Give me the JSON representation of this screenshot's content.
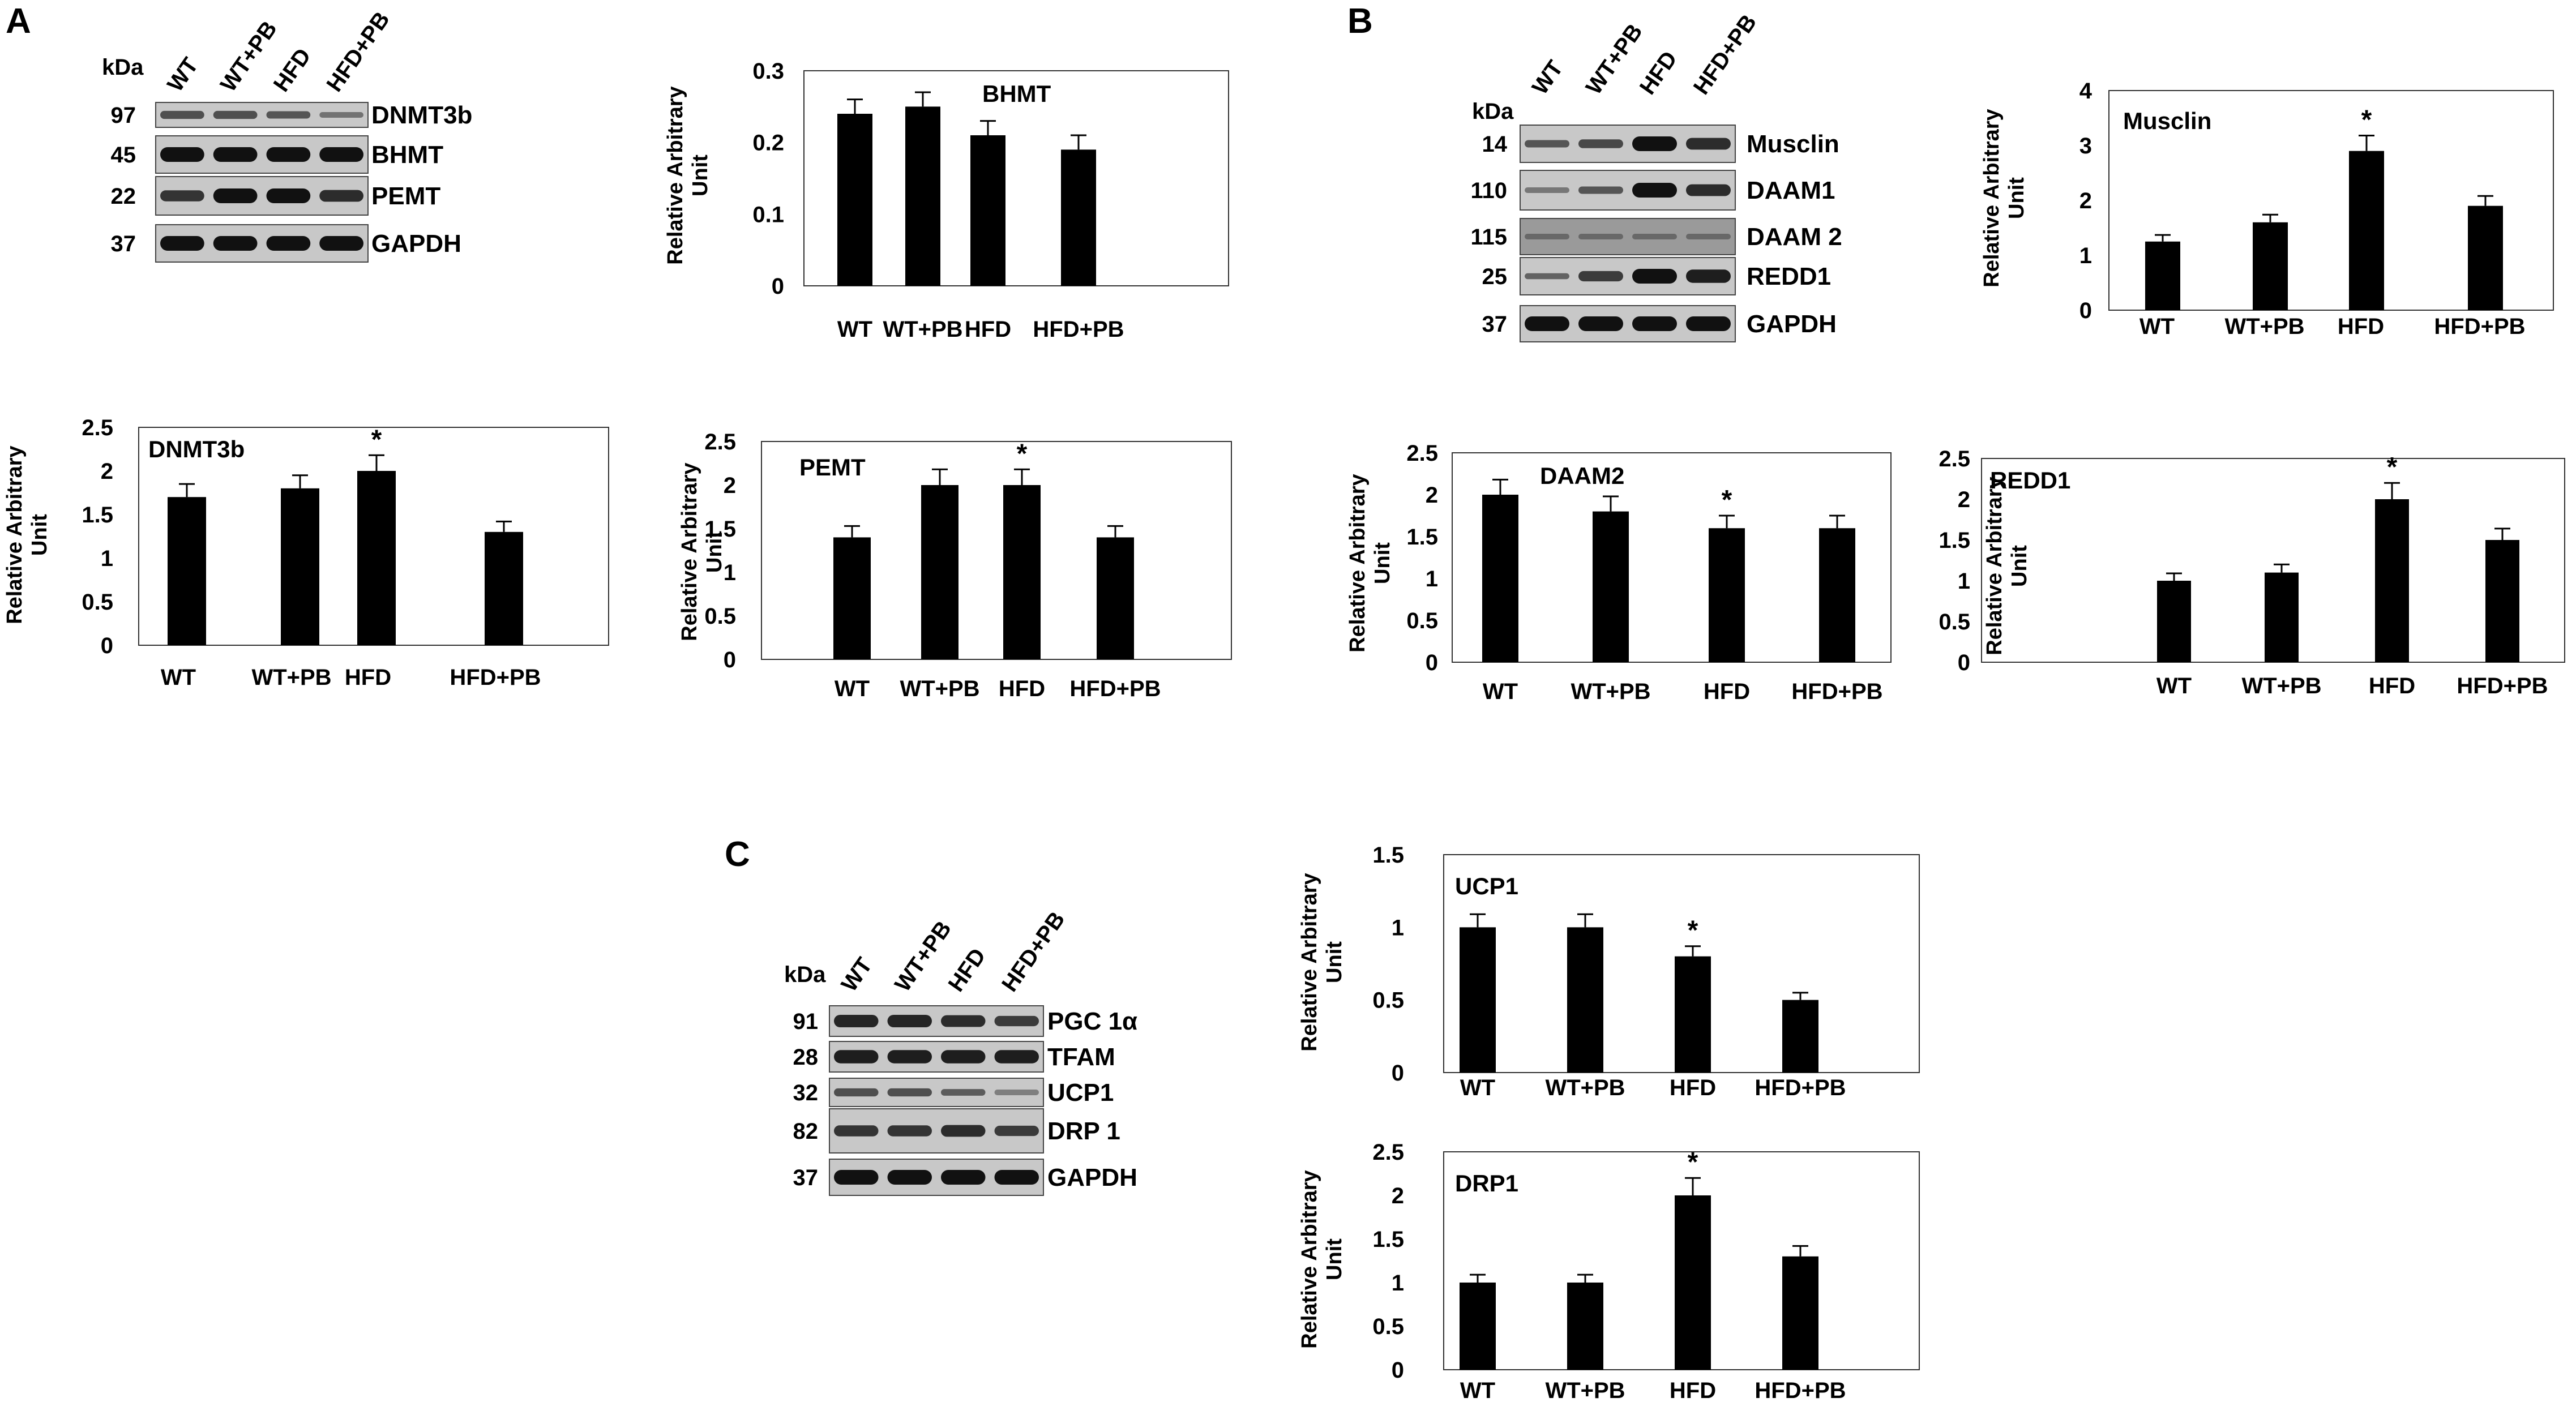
{
  "panels": [
    "A",
    "B",
    "C"
  ],
  "blots": [
    {
      "id": "A",
      "kda_title": "kDa",
      "lanes": [
        "WT",
        "WT+PB",
        "HFD",
        "HFD+PB"
      ],
      "rows": [
        {
          "kda": "97",
          "protein": "DNMT3b"
        },
        {
          "kda": "45",
          "protein": "BHMT"
        },
        {
          "kda": "22",
          "protein": "PEMT"
        },
        {
          "kda": "37",
          "protein": "GAPDH"
        }
      ]
    },
    {
      "id": "B",
      "kda_title": "kDa",
      "lanes": [
        "WT",
        "WT+PB",
        "HFD",
        "HFD+PB"
      ],
      "rows": [
        {
          "kda": "14",
          "protein": "Musclin"
        },
        {
          "kda": "110",
          "protein": "DAAM1"
        },
        {
          "kda": "115",
          "protein": "DAAM 2"
        },
        {
          "kda": "25",
          "protein": "REDD1"
        },
        {
          "kda": "37",
          "protein": "GAPDH"
        }
      ]
    },
    {
      "id": "C",
      "kda_title": "kDa",
      "lanes": [
        "WT",
        "WT+PB",
        "HFD",
        "HFD+PB"
      ],
      "rows": [
        {
          "kda": "91",
          "protein": "PGC 1α"
        },
        {
          "kda": "28",
          "protein": "TFAM"
        },
        {
          "kda": "32",
          "protein": "UCP1"
        },
        {
          "kda": "82",
          "protein": "DRP 1"
        },
        {
          "kda": "37",
          "protein": "GAPDH"
        }
      ]
    }
  ],
  "chart_data": [
    {
      "type": "bar",
      "title": "BHMT",
      "ylabel": "Relative Arbitrary Unit",
      "categories": [
        "WT",
        "WT+PB",
        "HFD",
        "HFD+PB"
      ],
      "values": [
        0.24,
        0.25,
        0.21,
        0.19
      ],
      "errors": [
        0.02,
        0.02,
        0.02,
        0.02
      ],
      "significant": [
        false,
        false,
        false,
        false
      ],
      "ylim": [
        0,
        0.3
      ],
      "yticks": [
        "0",
        "0.1",
        "0.2",
        "0.3"
      ],
      "grid": false
    },
    {
      "type": "bar",
      "title": "DNMT3b",
      "ylabel": "Relative Arbitrary Unit",
      "categories": [
        "WT",
        "WT+PB",
        "HFD",
        "HFD+PB"
      ],
      "values": [
        1.7,
        1.8,
        2.0,
        1.3
      ],
      "errors": [
        0.15,
        0.15,
        0.18,
        0.12
      ],
      "significant": [
        false,
        false,
        true,
        false
      ],
      "ylim": [
        0,
        2.5
      ],
      "yticks": [
        "0",
        "0.5",
        "1",
        "1.5",
        "2",
        "2.5"
      ],
      "grid": false
    },
    {
      "type": "bar",
      "title": "PEMT",
      "ylabel": "Relative Arbitrary Unit",
      "categories": [
        "WT",
        "WT+PB",
        "HFD",
        "HFD+PB"
      ],
      "values": [
        1.4,
        2.0,
        2.0,
        1.4
      ],
      "errors": [
        0.13,
        0.18,
        0.18,
        0.13
      ],
      "significant": [
        false,
        false,
        true,
        false
      ],
      "ylim": [
        0,
        2.5
      ],
      "yticks": [
        "0",
        "0.5",
        "1",
        "1.5",
        "2",
        "2.5"
      ],
      "grid": false
    },
    {
      "type": "bar",
      "title": "Musclin",
      "ylabel": "Relative Arbitrary Unit",
      "categories": [
        "WT",
        "WT+PB",
        "HFD",
        "HFD+PB"
      ],
      "values": [
        1.25,
        1.6,
        2.9,
        1.9
      ],
      "errors": [
        0.12,
        0.14,
        0.28,
        0.18
      ],
      "significant": [
        false,
        false,
        true,
        false
      ],
      "ylim": [
        0,
        4
      ],
      "yticks": [
        "0",
        "1",
        "2",
        "3",
        "4"
      ],
      "grid": false
    },
    {
      "type": "bar",
      "title": "DAAM2",
      "ylabel": "Relative Arbitrary Unit",
      "categories": [
        "WT",
        "WT+PB",
        "HFD",
        "HFD+PB"
      ],
      "values": [
        2.0,
        1.8,
        1.6,
        1.6
      ],
      "errors": [
        0.18,
        0.18,
        0.15,
        0.15
      ],
      "significant": [
        false,
        false,
        true,
        false
      ],
      "ylim": [
        0,
        2.5
      ],
      "yticks": [
        "0",
        "0.5",
        "1",
        "1.5",
        "2",
        "2.5"
      ],
      "grid": false
    },
    {
      "type": "bar",
      "title": "REDD1",
      "ylabel": "Relative Arbitrary Unit",
      "categories": [
        "WT",
        "WT+PB",
        "HFD",
        "HFD+PB"
      ],
      "values": [
        1.0,
        1.1,
        2.0,
        1.5
      ],
      "errors": [
        0.09,
        0.1,
        0.2,
        0.14
      ],
      "significant": [
        false,
        false,
        true,
        false
      ],
      "ylim": [
        0,
        2.5
      ],
      "yticks": [
        "0",
        "0.5",
        "1",
        "1.5",
        "2",
        "2.5"
      ],
      "grid": false
    },
    {
      "type": "bar",
      "title": "UCP1",
      "ylabel": "Relative Arbitrary Unit",
      "categories": [
        "WT",
        "WT+PB",
        "HFD",
        "HFD+PB"
      ],
      "values": [
        1.0,
        1.0,
        0.8,
        0.5
      ],
      "errors": [
        0.09,
        0.09,
        0.07,
        0.05
      ],
      "significant": [
        false,
        false,
        true,
        false
      ],
      "ylim": [
        0,
        1.5
      ],
      "yticks": [
        "0",
        "0.5",
        "1",
        "1.5"
      ],
      "grid": false
    },
    {
      "type": "bar",
      "title": "DRP1",
      "ylabel": "Relative Arbitrary Unit",
      "categories": [
        "WT",
        "WT+PB",
        "HFD",
        "HFD+PB"
      ],
      "values": [
        1.0,
        1.0,
        2.0,
        1.3
      ],
      "errors": [
        0.09,
        0.09,
        0.2,
        0.12
      ],
      "significant": [
        false,
        false,
        true,
        false
      ],
      "ylim": [
        0,
        2.5
      ],
      "yticks": [
        "0",
        "0.5",
        "1",
        "1.5",
        "2",
        "2.5"
      ],
      "grid": false
    }
  ]
}
